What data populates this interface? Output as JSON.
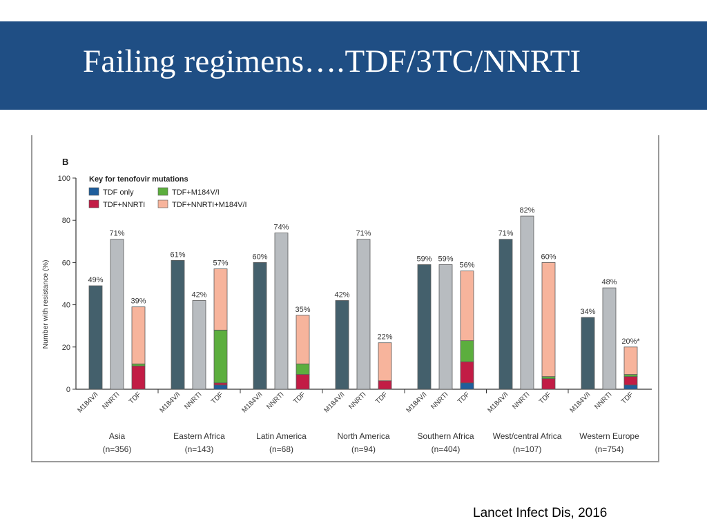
{
  "slide": {
    "title": "Failing regimens….TDF/3TC/NNRTI",
    "citation": "Lancet Infect Dis, 2016",
    "band_color": "#1f4e84"
  },
  "chart_data": {
    "type": "bar",
    "panel_label": "B",
    "ylabel": "Number with resistance (%)",
    "ylim": [
      0,
      100
    ],
    "yticks": [
      0,
      20,
      40,
      60,
      80,
      100
    ],
    "legend": {
      "title": "Key for tenofovir mutations",
      "placement": "top-left",
      "entries": [
        {
          "label": "TDF only",
          "color": "#1f5e9c"
        },
        {
          "label": "TDF+M184V/I",
          "color": "#5cae3e"
        },
        {
          "label": "TDF+NNRTI",
          "color": "#c21c45"
        },
        {
          "label": "TDF+NNRTI+M184V/I",
          "color": "#f7b49c"
        }
      ]
    },
    "bar_labels": [
      "M184V/I",
      "NNRTI",
      "TDF"
    ],
    "colors": {
      "m184": "#44606c",
      "nnrti": "#b8bcc0",
      "tdf_only": "#1f5e9c",
      "tdf_m184": "#5cae3e",
      "tdf_nnrti": "#c21c45",
      "tdf_all": "#f7b49c"
    },
    "groups": [
      {
        "region": "Asia",
        "n": "(n=356)",
        "m184": 49,
        "m184_label": "49%",
        "nnrti": 71,
        "nnrti_label": "71%",
        "tdf": 39,
        "tdf_label": "39%",
        "tdf_parts": {
          "tdf_only": 0,
          "tdf_nnrti": 11,
          "tdf_m184": 1,
          "tdf_all": 27
        }
      },
      {
        "region": "Eastern Africa",
        "n": "(n=143)",
        "m184": 61,
        "m184_label": "61%",
        "nnrti": 42,
        "nnrti_label": "42%",
        "tdf": 57,
        "tdf_label": "57%",
        "tdf_parts": {
          "tdf_only": 2,
          "tdf_nnrti": 1,
          "tdf_m184": 25,
          "tdf_all": 29
        }
      },
      {
        "region": "Latin America",
        "n": "(n=68)",
        "m184": 60,
        "m184_label": "60%",
        "nnrti": 74,
        "nnrti_label": "74%",
        "tdf": 35,
        "tdf_label": "35%",
        "tdf_parts": {
          "tdf_only": 0,
          "tdf_nnrti": 7,
          "tdf_m184": 5,
          "tdf_all": 23
        }
      },
      {
        "region": "North America",
        "n": "(n=94)",
        "m184": 42,
        "m184_label": "42%",
        "nnrti": 71,
        "nnrti_label": "71%",
        "tdf": 22,
        "tdf_label": "22%",
        "tdf_parts": {
          "tdf_only": 0,
          "tdf_nnrti": 4,
          "tdf_m184": 0,
          "tdf_all": 18
        }
      },
      {
        "region": "Southern Africa",
        "n": "(n=404)",
        "m184": 59,
        "m184_label": "59%",
        "nnrti": 59,
        "nnrti_label": "59%",
        "tdf": 56,
        "tdf_label": "56%",
        "tdf_parts": {
          "tdf_only": 3,
          "tdf_nnrti": 10,
          "tdf_m184": 10,
          "tdf_all": 33
        }
      },
      {
        "region": "West/central Africa",
        "n": "(n=107)",
        "m184": 71,
        "m184_label": "71%",
        "nnrti": 82,
        "nnrti_label": "82%",
        "tdf": 60,
        "tdf_label": "60%",
        "tdf_parts": {
          "tdf_only": 0,
          "tdf_nnrti": 5,
          "tdf_m184": 1,
          "tdf_all": 54
        }
      },
      {
        "region": "Western Europe",
        "n": "(n=754)",
        "m184": 34,
        "m184_label": "34%",
        "nnrti": 48,
        "nnrti_label": "48%",
        "tdf": 20,
        "tdf_label": "20%*",
        "tdf_parts": {
          "tdf_only": 2,
          "tdf_nnrti": 4,
          "tdf_m184": 1,
          "tdf_all": 13
        }
      }
    ]
  }
}
